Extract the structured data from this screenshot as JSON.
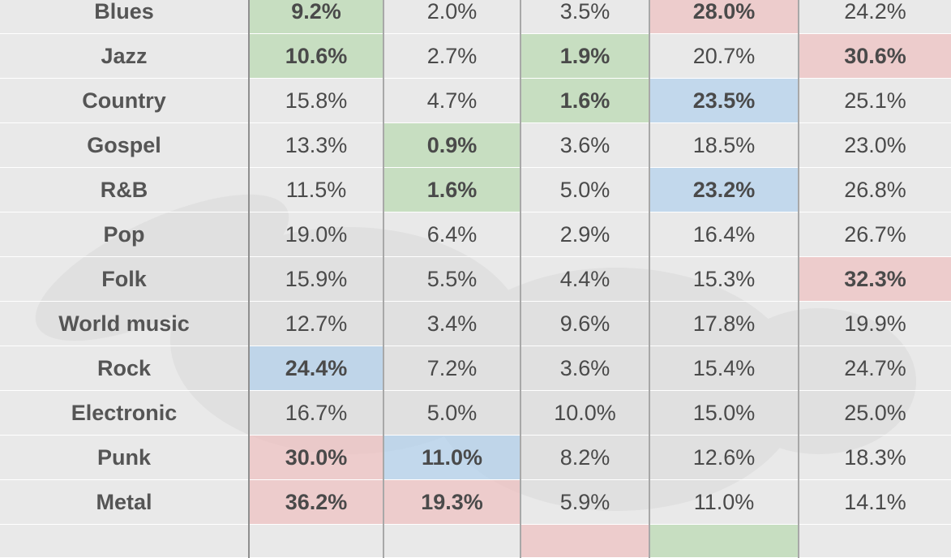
{
  "table": {
    "rows": [
      {
        "genre": "Blues",
        "cells": [
          {
            "v": "9.2%",
            "h": "g"
          },
          {
            "v": "2.0%",
            "h": ""
          },
          {
            "v": "3.5%",
            "h": ""
          },
          {
            "v": "28.0%",
            "h": "r"
          },
          {
            "v": "24.2%",
            "h": ""
          }
        ]
      },
      {
        "genre": "Jazz",
        "cells": [
          {
            "v": "10.6%",
            "h": "g"
          },
          {
            "v": "2.7%",
            "h": ""
          },
          {
            "v": "1.9%",
            "h": "g"
          },
          {
            "v": "20.7%",
            "h": ""
          },
          {
            "v": "30.6%",
            "h": "r"
          }
        ]
      },
      {
        "genre": "Country",
        "cells": [
          {
            "v": "15.8%",
            "h": ""
          },
          {
            "v": "4.7%",
            "h": ""
          },
          {
            "v": "1.6%",
            "h": "g"
          },
          {
            "v": "23.5%",
            "h": "b"
          },
          {
            "v": "25.1%",
            "h": ""
          }
        ]
      },
      {
        "genre": "Gospel",
        "cells": [
          {
            "v": "13.3%",
            "h": ""
          },
          {
            "v": "0.9%",
            "h": "g"
          },
          {
            "v": "3.6%",
            "h": ""
          },
          {
            "v": "18.5%",
            "h": ""
          },
          {
            "v": "23.0%",
            "h": ""
          }
        ]
      },
      {
        "genre": "R&B",
        "cells": [
          {
            "v": "11.5%",
            "h": ""
          },
          {
            "v": "1.6%",
            "h": "g"
          },
          {
            "v": "5.0%",
            "h": ""
          },
          {
            "v": "23.2%",
            "h": "b"
          },
          {
            "v": "26.8%",
            "h": ""
          }
        ]
      },
      {
        "genre": "Pop",
        "cells": [
          {
            "v": "19.0%",
            "h": ""
          },
          {
            "v": "6.4%",
            "h": ""
          },
          {
            "v": "2.9%",
            "h": ""
          },
          {
            "v": "16.4%",
            "h": ""
          },
          {
            "v": "26.7%",
            "h": ""
          }
        ]
      },
      {
        "genre": "Folk",
        "cells": [
          {
            "v": "15.9%",
            "h": ""
          },
          {
            "v": "5.5%",
            "h": ""
          },
          {
            "v": "4.4%",
            "h": ""
          },
          {
            "v": "15.3%",
            "h": ""
          },
          {
            "v": "32.3%",
            "h": "r"
          }
        ]
      },
      {
        "genre": "World music",
        "cells": [
          {
            "v": "12.7%",
            "h": ""
          },
          {
            "v": "3.4%",
            "h": ""
          },
          {
            "v": "9.6%",
            "h": ""
          },
          {
            "v": "17.8%",
            "h": ""
          },
          {
            "v": "19.9%",
            "h": ""
          }
        ]
      },
      {
        "genre": "Rock",
        "cells": [
          {
            "v": "24.4%",
            "h": "b"
          },
          {
            "v": "7.2%",
            "h": ""
          },
          {
            "v": "3.6%",
            "h": ""
          },
          {
            "v": "15.4%",
            "h": ""
          },
          {
            "v": "24.7%",
            "h": ""
          }
        ]
      },
      {
        "genre": "Electronic",
        "cells": [
          {
            "v": "16.7%",
            "h": ""
          },
          {
            "v": "5.0%",
            "h": ""
          },
          {
            "v": "10.0%",
            "h": ""
          },
          {
            "v": "15.0%",
            "h": ""
          },
          {
            "v": "25.0%",
            "h": ""
          }
        ]
      },
      {
        "genre": "Punk",
        "cells": [
          {
            "v": "30.0%",
            "h": "r"
          },
          {
            "v": "11.0%",
            "h": "b"
          },
          {
            "v": "8.2%",
            "h": ""
          },
          {
            "v": "12.6%",
            "h": ""
          },
          {
            "v": "18.3%",
            "h": ""
          }
        ]
      },
      {
        "genre": "Metal",
        "cells": [
          {
            "v": "36.2%",
            "h": "r"
          },
          {
            "v": "19.3%",
            "h": "r"
          },
          {
            "v": "5.9%",
            "h": ""
          },
          {
            "v": "11.0%",
            "h": ""
          },
          {
            "v": "14.1%",
            "h": ""
          }
        ]
      }
    ],
    "partial_row": {
      "cells": [
        {
          "h": ""
        },
        {
          "h": ""
        },
        {
          "h": "r"
        },
        {
          "h": "g"
        },
        {
          "h": ""
        }
      ]
    }
  },
  "colors": {
    "background": "#e9e9e9",
    "highlight_green": "#3a7d2e",
    "highlight_red": "#b02a2a",
    "highlight_blue": "#2f6fad"
  }
}
